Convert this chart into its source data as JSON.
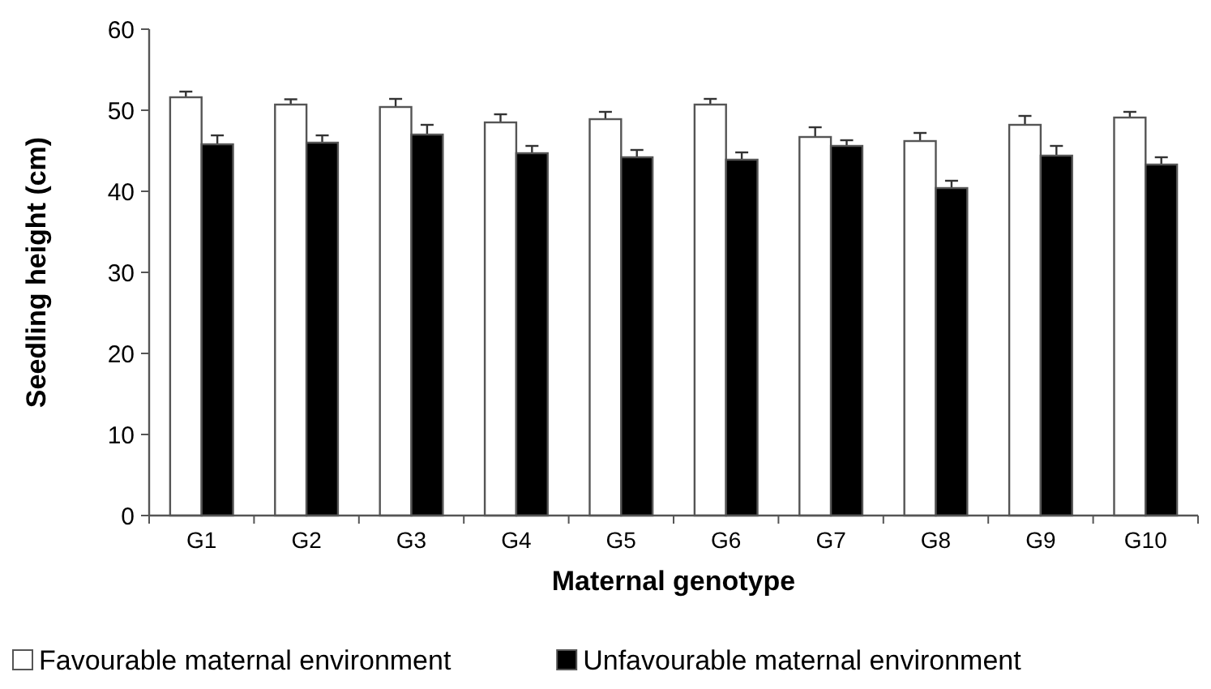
{
  "chart_data": {
    "type": "bar",
    "xlabel": "Maternal genotype",
    "ylabel": "Seedling height (cm)",
    "categories": [
      "G1",
      "G2",
      "G3",
      "G4",
      "G5",
      "G6",
      "G7",
      "G8",
      "G9",
      "G10"
    ],
    "series": [
      {
        "name": "Favourable maternal environment",
        "color": "#ffffff",
        "values": [
          51.6,
          50.7,
          50.4,
          48.5,
          48.9,
          50.7,
          46.7,
          46.2,
          48.2,
          49.1
        ],
        "errors": [
          0.7,
          0.65,
          1.0,
          1.0,
          0.9,
          0.7,
          1.2,
          1.0,
          1.1,
          0.7
        ]
      },
      {
        "name": "Unfavourable maternal environment",
        "color": "#000000",
        "values": [
          45.8,
          46.0,
          47.0,
          44.7,
          44.2,
          43.9,
          45.6,
          40.4,
          44.4,
          43.3
        ],
        "errors": [
          1.1,
          0.9,
          1.2,
          0.9,
          0.9,
          0.9,
          0.7,
          0.9,
          1.2,
          0.9
        ]
      }
    ],
    "ylim": [
      0,
      60
    ],
    "yticks": [
      0,
      10,
      20,
      30,
      40,
      50,
      60
    ],
    "grid": false,
    "legend": "bottom"
  }
}
